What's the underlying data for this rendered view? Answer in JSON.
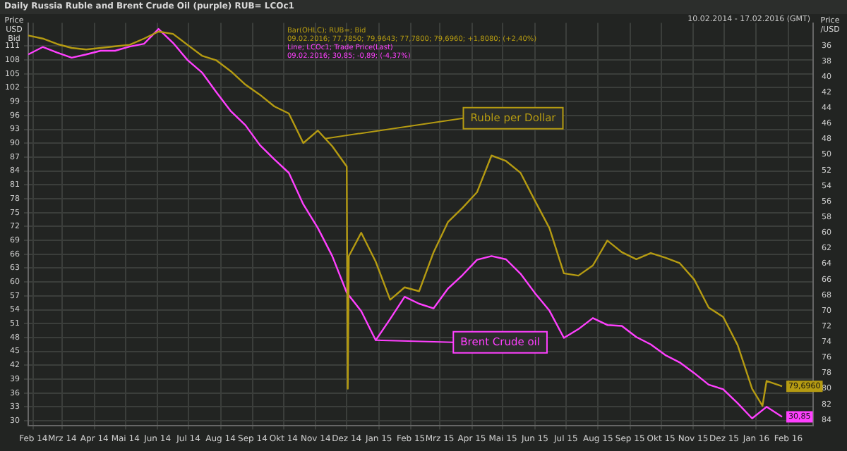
{
  "chart_data": {
    "type": "line",
    "title": "Daily Russia Ruble and Brent Crude Oil (purple) RUB= LCOc1",
    "ylabel": "Price USD Bid",
    "y2label": "Price /USD",
    "annotations": [
      "10.02.2014 - 17.02.2016 (GMT)",
      "Bar(OHLC); RUB=; Bid",
      "09.02.2016; 77,7850; 79,9643; 77,7800; 79,6960; +1,8080; (+2,40%)",
      "Line; LCOc1; Trade Price(Last)",
      "09.02.2016; 30,85; -0,89; (-4,37%)",
      {
        "text": "Ruble per Dollar",
        "x": "2014-11-24",
        "y": 91
      },
      {
        "text": "Brent Crude oil",
        "x": "2015-01-12",
        "y": 47.4
      }
    ],
    "xlim": [
      "2014-02-10",
      "2016-03-10"
    ],
    "xticks": [
      {
        "value": "2014-02-15",
        "label": "Feb 14"
      },
      {
        "value": "2014-03-15",
        "label": "Mrz 14"
      },
      {
        "value": "2014-04-15",
        "label": "Apr 14"
      },
      {
        "value": "2014-05-15",
        "label": "Mai 14"
      },
      {
        "value": "2014-06-15",
        "label": "Jun 14"
      },
      {
        "value": "2014-07-15",
        "label": "Jul 14"
      },
      {
        "value": "2014-08-15",
        "label": "Aug 14"
      },
      {
        "value": "2014-09-15",
        "label": "Sep 14"
      },
      {
        "value": "2014-10-15",
        "label": "Okt 14"
      },
      {
        "value": "2014-11-15",
        "label": "Nov 14"
      },
      {
        "value": "2014-12-15",
        "label": "Dez 14"
      },
      {
        "value": "2015-01-15",
        "label": "Jan 15"
      },
      {
        "value": "2015-02-15",
        "label": "Feb 15"
      },
      {
        "value": "2015-03-15",
        "label": "Mrz 15"
      },
      {
        "value": "2015-04-15",
        "label": "Apr 15"
      },
      {
        "value": "2015-05-15",
        "label": "Mai 15"
      },
      {
        "value": "2015-06-15",
        "label": "Jun 15"
      },
      {
        "value": "2015-07-15",
        "label": "Jul 15"
      },
      {
        "value": "2015-08-15",
        "label": "Aug 15"
      },
      {
        "value": "2015-09-15",
        "label": "Sep 15"
      },
      {
        "value": "2015-10-15",
        "label": "Okt 15"
      },
      {
        "value": "2015-11-15",
        "label": "Nov 15"
      },
      {
        "value": "2015-12-15",
        "label": "Dez 15"
      },
      {
        "value": "2016-01-15",
        "label": "Jan 16"
      },
      {
        "value": "2016-02-15",
        "label": "Feb 16"
      }
    ],
    "ylim": [
      29,
      116
    ],
    "yticks": [
      30,
      33,
      36,
      39,
      42,
      45,
      48,
      51,
      54,
      57,
      60,
      63,
      66,
      69,
      72,
      75,
      78,
      81,
      84,
      87,
      90,
      93,
      96,
      99,
      102,
      105,
      108,
      111
    ],
    "y2lim": [
      84.7,
      33.1
    ],
    "y2ticks": [
      36,
      38,
      40,
      42,
      44,
      46,
      48,
      50,
      52,
      54,
      56,
      58,
      60,
      62,
      64,
      66,
      68,
      70,
      72,
      74,
      76,
      78,
      80,
      82,
      84
    ],
    "grid": true,
    "legend": false,
    "marker": "none",
    "line_style": "solid",
    "series": [
      {
        "color": "#b59b12",
        "axis": "y2",
        "x": [
          "2014-02-10",
          "2014-02-24",
          "2014-03-10",
          "2014-03-24",
          "2014-04-07",
          "2014-04-21",
          "2014-05-05",
          "2014-05-19",
          "2014-06-02",
          "2014-06-16",
          "2014-06-30",
          "2014-07-14",
          "2014-07-28",
          "2014-08-11",
          "2014-08-25",
          "2014-09-08",
          "2014-09-22",
          "2014-10-06",
          "2014-10-20",
          "2014-11-03",
          "2014-11-17",
          "2014-12-01",
          "2014-12-15",
          "2014-12-16",
          "2014-12-17",
          "2014-12-29",
          "2015-01-12",
          "2015-01-26",
          "2015-02-09",
          "2015-02-23",
          "2015-03-09",
          "2015-03-23",
          "2015-04-06",
          "2015-04-20",
          "2015-05-04",
          "2015-05-18",
          "2015-06-01",
          "2015-06-15",
          "2015-06-29",
          "2015-07-13",
          "2015-07-27",
          "2015-08-10",
          "2015-08-24",
          "2015-09-07",
          "2015-09-21",
          "2015-10-05",
          "2015-10-19",
          "2015-11-02",
          "2015-11-16",
          "2015-11-30",
          "2015-12-14",
          "2015-12-28",
          "2016-01-11",
          "2016-01-21",
          "2016-01-25",
          "2016-02-09"
        ],
        "values": [
          34.7,
          35.1,
          35.8,
          36.3,
          36.5,
          36.3,
          36.1,
          35.9,
          35.1,
          34.2,
          34.5,
          35.9,
          37.3,
          37.9,
          39.3,
          41,
          42.3,
          43.8,
          44.7,
          48.5,
          46.9,
          48.9,
          51.5,
          80,
          63,
          60,
          63.7,
          68.6,
          67,
          67.5,
          62.5,
          58.6,
          56.8,
          54.8,
          50.1,
          50.8,
          52.3,
          55.9,
          59.4,
          65.2,
          65.5,
          64.2,
          61,
          62.5,
          63.4,
          62.6,
          63.2,
          63.9,
          66,
          69.6,
          70.8,
          74.4,
          80,
          82.2,
          79,
          79.696
        ],
        "value_labels": [
          null,
          null,
          null,
          null,
          null,
          null,
          null,
          null,
          null,
          null,
          null,
          null,
          null,
          null,
          null,
          null,
          null,
          null,
          null,
          null,
          null,
          null,
          null,
          null,
          null,
          null,
          null,
          null,
          null,
          null,
          null,
          null,
          null,
          null,
          null,
          null,
          null,
          null,
          null,
          null,
          null,
          null,
          null,
          null,
          null,
          null,
          null,
          null,
          null,
          null,
          null,
          null,
          null,
          null,
          null,
          "79,6960"
        ]
      },
      {
        "color": "#ff40ff",
        "x": [
          "2014-02-10",
          "2014-02-24",
          "2014-03-10",
          "2014-03-24",
          "2014-04-07",
          "2014-04-21",
          "2014-05-05",
          "2014-05-19",
          "2014-06-02",
          "2014-06-16",
          "2014-06-30",
          "2014-07-14",
          "2014-07-28",
          "2014-08-11",
          "2014-08-25",
          "2014-09-08",
          "2014-09-22",
          "2014-10-06",
          "2014-10-20",
          "2014-11-03",
          "2014-11-17",
          "2014-12-01",
          "2014-12-15",
          "2014-12-29",
          "2015-01-12",
          "2015-01-26",
          "2015-02-09",
          "2015-02-23",
          "2015-03-09",
          "2015-03-23",
          "2015-04-06",
          "2015-04-20",
          "2015-05-04",
          "2015-05-18",
          "2015-06-01",
          "2015-06-15",
          "2015-06-29",
          "2015-07-13",
          "2015-07-27",
          "2015-08-10",
          "2015-08-24",
          "2015-09-07",
          "2015-09-21",
          "2015-10-05",
          "2015-10-19",
          "2015-11-02",
          "2015-11-16",
          "2015-11-30",
          "2015-12-14",
          "2015-12-28",
          "2016-01-11",
          "2016-01-25",
          "2016-02-09"
        ],
        "values": [
          109.2,
          110.8,
          109.6,
          108.5,
          109.2,
          110,
          110,
          110.9,
          111.5,
          114.7,
          111.7,
          108,
          105.3,
          101,
          96.9,
          93.9,
          89.6,
          86.5,
          83.6,
          76.8,
          71.7,
          65.6,
          57.7,
          53.7,
          47.4,
          52,
          56.8,
          55.3,
          54.3,
          58.6,
          61.5,
          64.8,
          65.6,
          64.9,
          61.8,
          57.6,
          53.8,
          47.9,
          49.8,
          52.2,
          50.7,
          50.5,
          48.1,
          46.5,
          44.2,
          42.6,
          40.3,
          37.8,
          36.8,
          33.8,
          30.5,
          33,
          30.85
        ],
        "value_labels": [
          null,
          null,
          null,
          null,
          null,
          null,
          null,
          null,
          null,
          null,
          null,
          null,
          null,
          null,
          null,
          null,
          null,
          null,
          null,
          null,
          null,
          null,
          null,
          null,
          null,
          null,
          null,
          null,
          null,
          null,
          null,
          null,
          null,
          null,
          null,
          null,
          null,
          null,
          null,
          null,
          null,
          null,
          null,
          null,
          null,
          null,
          null,
          null,
          null,
          null,
          null,
          null,
          "30,85"
        ]
      }
    ]
  }
}
